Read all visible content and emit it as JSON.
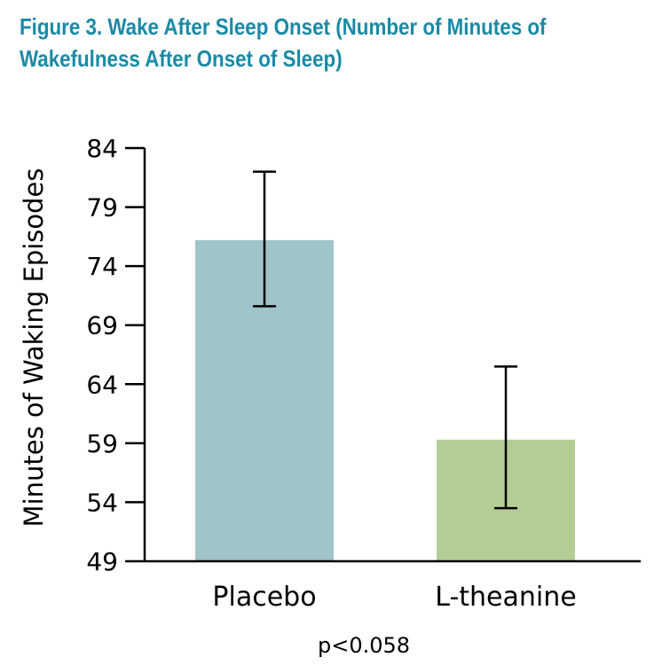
{
  "chart_data": {
    "type": "bar",
    "title_line1": "Figure 3. Wake After Sleep Onset (Number of Minutes of",
    "title_line2": "Wakefulness After Onset of Sleep)",
    "ylabel": "Minutes of Waking Episodes",
    "xlabel": "",
    "categories": [
      "Placebo",
      "L-theanine"
    ],
    "values": [
      76.2,
      59.3
    ],
    "error_low": [
      70.6,
      53.5
    ],
    "error_high": [
      82.0,
      65.5
    ],
    "ylim": [
      49,
      84
    ],
    "yticks": [
      "84",
      "79",
      "74",
      "69",
      "64",
      "59",
      "54",
      "49"
    ],
    "bar_colors": [
      "#9fc4c9",
      "#b4cd95"
    ],
    "annotation": "p<0.058",
    "grid": false,
    "legend": "none"
  },
  "colors": {
    "title": "#1a8aa6",
    "axis": "#000000"
  }
}
